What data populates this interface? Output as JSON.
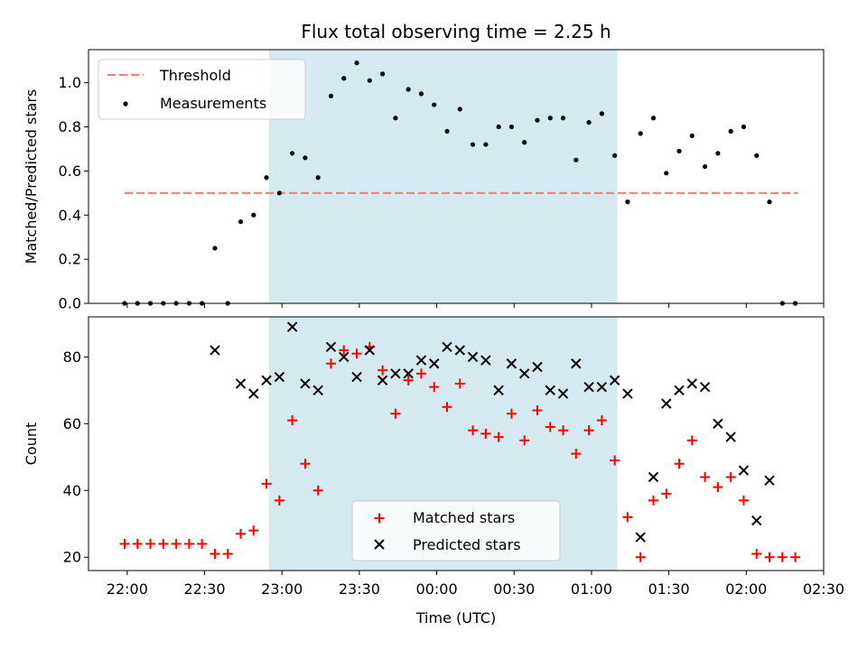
{
  "chart_data": [
    {
      "type": "scatter",
      "title": "Flux total observing time = 2.25 h",
      "xlabel": "",
      "ylabel": "Matched/Predicted stars",
      "ylim": [
        0,
        1.15
      ],
      "yticks": [
        "0.0",
        "0.2",
        "0.4",
        "0.6",
        "0.8",
        "1.0"
      ],
      "highlight_span": {
        "start_min": 55,
        "end_min": 190,
        "color": "#d4eaf0"
      },
      "threshold": {
        "name": "Threshold",
        "value": 0.5,
        "x_start_min": -1,
        "x_end_min": 260,
        "color": "#ff7b7b"
      },
      "legend": {
        "threshold": "Threshold",
        "measurements": "Measurements",
        "position": "upper-left"
      },
      "series": [
        {
          "name": "Measurements",
          "x": [
            -1,
            4,
            9,
            14,
            19,
            24,
            29,
            34,
            39,
            44,
            49,
            54,
            59,
            64,
            69,
            74,
            79,
            84,
            89,
            94,
            99,
            104,
            109,
            114,
            119,
            124,
            129,
            134,
            139,
            144,
            149,
            154,
            159,
            164,
            169,
            174,
            179,
            184,
            189,
            194,
            199,
            204,
            209,
            214,
            219,
            224,
            229,
            234,
            239,
            244,
            249,
            254,
            259
          ],
          "y": [
            0,
            0,
            0,
            0,
            0,
            0,
            0,
            0.25,
            0,
            0.37,
            0.4,
            0.57,
            0.5,
            0.68,
            0.66,
            0.57,
            0.94,
            1.02,
            1.09,
            1.01,
            1.04,
            0.84,
            0.97,
            0.95,
            0.9,
            0.78,
            0.88,
            0.72,
            0.72,
            0.8,
            0.8,
            0.73,
            0.83,
            0.84,
            0.84,
            0.65,
            0.82,
            0.86,
            0.67,
            0.46,
            0.77,
            0.84,
            0.59,
            0.69,
            0.76,
            0.62,
            0.68,
            0.78,
            0.8,
            0.67,
            0.46,
            0,
            0
          ]
        }
      ]
    },
    {
      "type": "scatter",
      "xlabel": "Time (UTC)",
      "ylabel": "Count",
      "ylim": [
        16,
        92
      ],
      "yticks": [
        "20",
        "40",
        "60",
        "80"
      ],
      "xlim_min": [
        -15,
        270
      ],
      "xticks": [
        "22:00",
        "22:30",
        "23:00",
        "23:30",
        "00:00",
        "00:30",
        "01:00",
        "01:30",
        "02:00",
        "02:30"
      ],
      "highlight_span": {
        "start_min": 55,
        "end_min": 190,
        "color": "#d4eaf0"
      },
      "legend": {
        "matched": "Matched stars",
        "predicted": "Predicted stars",
        "position": "lower-center"
      },
      "series": [
        {
          "name": "Matched stars",
          "color": "#ff0000",
          "marker": "plus",
          "x": [
            -1,
            4,
            9,
            14,
            19,
            24,
            29,
            34,
            39,
            44,
            49,
            54,
            59,
            64,
            69,
            74,
            79,
            84,
            89,
            94,
            99,
            104,
            109,
            114,
            119,
            124,
            129,
            134,
            139,
            144,
            149,
            154,
            159,
            164,
            169,
            174,
            179,
            184,
            189,
            194,
            199,
            204,
            209,
            214,
            219,
            224,
            229,
            234,
            239,
            244,
            249,
            254,
            259
          ],
          "y": [
            24,
            24,
            24,
            24,
            24,
            24,
            24,
            21,
            21,
            27,
            28,
            42,
            37,
            61,
            48,
            40,
            78,
            82,
            81,
            83,
            76,
            63,
            73,
            75,
            71,
            65,
            72,
            58,
            57,
            56,
            63,
            55,
            64,
            59,
            58,
            51,
            58,
            61,
            49,
            32,
            20,
            37,
            39,
            48,
            55,
            44,
            41,
            44,
            37,
            21,
            20,
            20,
            20
          ]
        },
        {
          "name": "Predicted stars",
          "color": "#000000",
          "marker": "x",
          "x": [
            34,
            44,
            49,
            54,
            59,
            64,
            69,
            74,
            79,
            84,
            89,
            94,
            99,
            104,
            109,
            114,
            119,
            124,
            129,
            134,
            139,
            144,
            149,
            154,
            159,
            164,
            169,
            174,
            179,
            184,
            189,
            194,
            199,
            204,
            209,
            214,
            219,
            224,
            229,
            234,
            239,
            244,
            249
          ],
          "y": [
            82,
            72,
            69,
            73,
            74,
            89,
            72,
            70,
            83,
            80,
            74,
            82,
            73,
            75,
            75,
            79,
            78,
            83,
            82,
            80,
            79,
            70,
            78,
            75,
            77,
            70,
            69,
            78,
            71,
            71,
            73,
            69,
            26,
            44,
            66,
            70,
            72,
            71,
            60,
            56,
            46,
            31,
            43
          ]
        }
      ]
    }
  ]
}
